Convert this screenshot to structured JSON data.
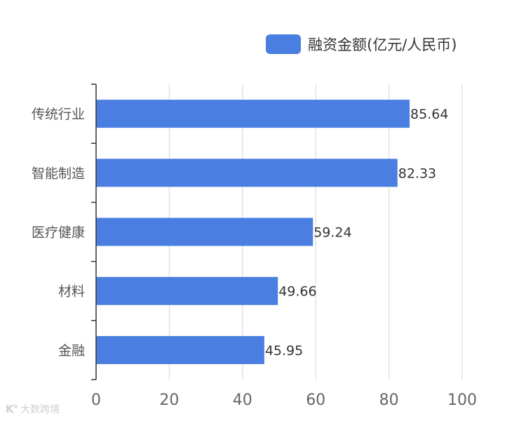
{
  "chart_data": {
    "type": "bar",
    "orientation": "horizontal",
    "categories": [
      "传统行业",
      "智能制造",
      "医疗健康",
      "材料",
      "金融"
    ],
    "series": [
      {
        "name": "融资金额(亿元/人民币)",
        "values": [
          85.64,
          82.33,
          59.24,
          49.66,
          45.95
        ]
      }
    ],
    "data_labels": [
      "85.64",
      "82.33",
      "59.24",
      "49.66",
      "45.95"
    ],
    "xlim": [
      0,
      100
    ],
    "x_ticks": [
      "0",
      "20",
      "40",
      "60",
      "80",
      "100"
    ],
    "grid": "vertical",
    "legend_position": "top-right",
    "colors": {
      "bar": "#4a7ee0",
      "grid": "#dde3ea",
      "axis": "#333333"
    }
  },
  "legend": {
    "label": "融资金额(亿元/人民币)"
  },
  "watermark": {
    "text": "大数跨境"
  }
}
